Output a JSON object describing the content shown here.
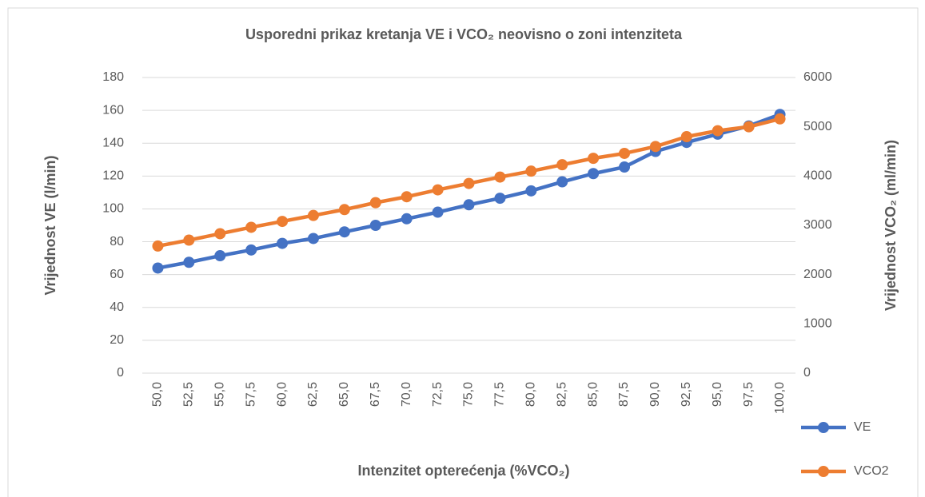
{
  "chart_data": {
    "type": "line",
    "title": "Usporedni prikaz kretanja VE i VCO₂ neovisno o zoni intenziteta",
    "xlabel": "Intenzitet opterećenja (%VCO₂)",
    "ylabel": "Vrijednost VE (l/min)",
    "y2label": "Vrijednost VCO₂ (ml/min)",
    "categories": [
      "50,0",
      "52,5",
      "55,0",
      "57,5",
      "60,0",
      "62,5",
      "65,0",
      "67,5",
      "70,0",
      "72,5",
      "75,0",
      "77,5",
      "80,0",
      "82,5",
      "85,0",
      "87,5",
      "90,0",
      "92,5",
      "95,0",
      "97,5",
      "100,0"
    ],
    "series": [
      {
        "name": "VE",
        "color": "#4472c4",
        "values": [
          64,
          67.5,
          71.5,
          75,
          79,
          82,
          86,
          90,
          94,
          98,
          102.5,
          106.5,
          111,
          116.5,
          121.5,
          125.5,
          135,
          140.5,
          145.5,
          150.5,
          157.5
        ]
      },
      {
        "name": "VCO2",
        "color": "#ed7d31",
        "axis": "y2",
        "values": [
          2580,
          2700,
          2830,
          2960,
          3080,
          3200,
          3320,
          3460,
          3580,
          3720,
          3850,
          3980,
          4100,
          4230,
          4360,
          4460,
          4600,
          4800,
          4920,
          5000,
          5160
        ]
      }
    ],
    "ylim": [
      0,
      180
    ],
    "yticks": [
      0,
      20,
      40,
      60,
      80,
      100,
      120,
      140,
      160,
      180
    ],
    "y2lim": [
      0,
      6000
    ],
    "y2ticks": [
      0,
      1000,
      2000,
      3000,
      4000,
      5000,
      6000
    ],
    "grid": true,
    "legend": "right"
  }
}
